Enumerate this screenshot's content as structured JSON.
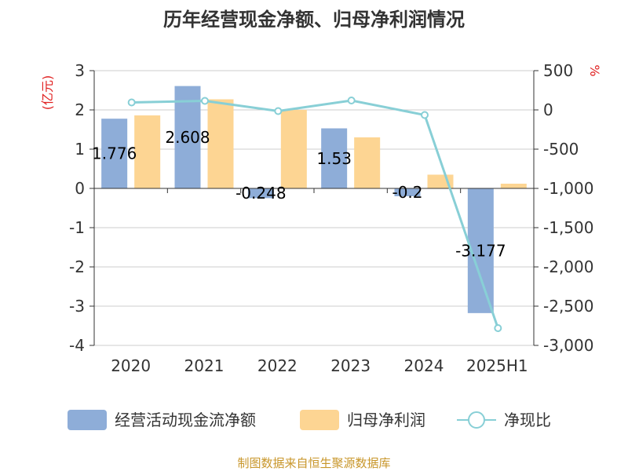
{
  "title": "历年经营现金净额、归母净利润情况",
  "left_unit": "(亿元)",
  "right_unit": "%",
  "source": "制图数据来自恒生聚源数据库",
  "colors": {
    "cash_flow": "#8eadd8",
    "net_profit": "#fdd593",
    "ratio": "#88cfd6"
  },
  "chart_data": {
    "type": "bar",
    "categories": [
      "2020",
      "2021",
      "2022",
      "2023",
      "2024",
      "2025H1"
    ],
    "series": [
      {
        "name": "经营活动现金流净额",
        "type": "bar",
        "axis": "left",
        "values": [
          1.776,
          2.608,
          -0.248,
          1.53,
          -0.2,
          -3.177
        ],
        "labels": [
          "1.776",
          "2.608",
          "-0.248",
          "1.53",
          "-0.2",
          "-3.177"
        ]
      },
      {
        "name": "归母净利润",
        "type": "bar",
        "axis": "left",
        "values": [
          1.86,
          2.27,
          2.0,
          1.3,
          0.35,
          0.12
        ]
      },
      {
        "name": "净现比",
        "type": "line",
        "axis": "right",
        "values": [
          95,
          115,
          -15,
          120,
          -65,
          -2780
        ]
      }
    ],
    "left_axis": {
      "ylim": [
        -4,
        3
      ],
      "ticks": [
        "3",
        "2",
        "1",
        "0",
        "-1",
        "-2",
        "-3",
        "-4"
      ]
    },
    "right_axis": {
      "ylim": [
        -3000,
        500
      ],
      "ticks": [
        "500",
        "0",
        "-500",
        "-1,000",
        "-1,500",
        "-2,000",
        "-2,500",
        "-3,000"
      ]
    },
    "grid": true,
    "legend_position": "bottom"
  }
}
